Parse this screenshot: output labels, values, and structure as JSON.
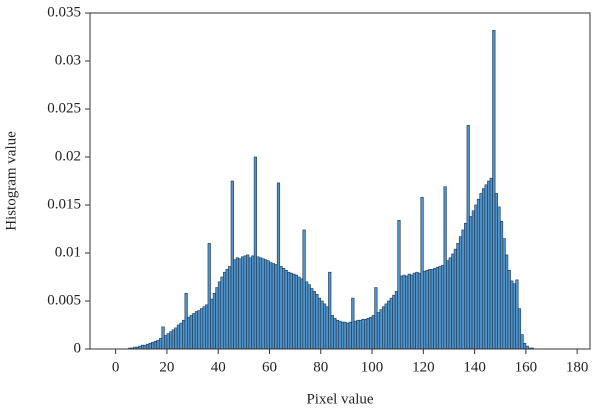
{
  "chart_data": {
    "type": "histogram",
    "xlabel": "Pixel value",
    "ylabel": "Histogram value",
    "color": "#4f93c9",
    "edgecolor": "#1d3650",
    "xlim": [
      -10,
      185
    ],
    "ylim": [
      0,
      0.035
    ],
    "xticks": [
      0,
      20,
      40,
      60,
      80,
      100,
      120,
      140,
      160,
      180
    ],
    "yticks": [
      0,
      0.005,
      0.01,
      0.015,
      0.02,
      0.025,
      0.03,
      0.035
    ],
    "bins": [
      0,
      1,
      2,
      3,
      4,
      5,
      6,
      7,
      8,
      9,
      10,
      11,
      12,
      13,
      14,
      15,
      16,
      17,
      18,
      19,
      20,
      21,
      22,
      23,
      24,
      25,
      26,
      27,
      28,
      29,
      30,
      31,
      32,
      33,
      34,
      35,
      36,
      37,
      38,
      39,
      40,
      41,
      42,
      43,
      44,
      45,
      46,
      47,
      48,
      49,
      50,
      51,
      52,
      53,
      54,
      55,
      56,
      57,
      58,
      59,
      60,
      61,
      62,
      63,
      64,
      65,
      66,
      67,
      68,
      69,
      70,
      71,
      72,
      73,
      74,
      75,
      76,
      77,
      78,
      79,
      80,
      81,
      82,
      83,
      84,
      85,
      86,
      87,
      88,
      89,
      90,
      91,
      92,
      93,
      94,
      95,
      96,
      97,
      98,
      99,
      100,
      101,
      102,
      103,
      104,
      105,
      106,
      107,
      108,
      109,
      110,
      111,
      112,
      113,
      114,
      115,
      116,
      117,
      118,
      119,
      120,
      121,
      122,
      123,
      124,
      125,
      126,
      127,
      128,
      129,
      130,
      131,
      132,
      133,
      134,
      135,
      136,
      137,
      138,
      139,
      140,
      141,
      142,
      143,
      144,
      145,
      146,
      147,
      148,
      149,
      150,
      151,
      152,
      153,
      154,
      155,
      156,
      157,
      158,
      159,
      160,
      161,
      162,
      163,
      164,
      165,
      166,
      167,
      168,
      169,
      170
    ],
    "values": [
      0,
      0,
      0,
      0,
      0,
      0.0001,
      0.0001,
      0.0002,
      0.0002,
      0.0003,
      0.0004,
      0.0004,
      0.0005,
      0.0006,
      0.0007,
      0.0008,
      0.0009,
      0.0011,
      0.0023,
      0.0014,
      0.0016,
      0.0018,
      0.002,
      0.0022,
      0.0025,
      0.0027,
      0.003,
      0.0058,
      0.0033,
      0.0035,
      0.0037,
      0.0039,
      0.004,
      0.0042,
      0.0044,
      0.0046,
      0.011,
      0.0052,
      0.0058,
      0.0064,
      0.007,
      0.0075,
      0.008,
      0.0083,
      0.0086,
      0.0175,
      0.0093,
      0.0095,
      0.0094,
      0.0096,
      0.0097,
      0.0098,
      0.0095,
      0.0097,
      0.02,
      0.0096,
      0.0095,
      0.0094,
      0.0093,
      0.0092,
      0.009,
      0.0089,
      0.0088,
      0.0173,
      0.0086,
      0.0084,
      0.0082,
      0.008,
      0.0079,
      0.0078,
      0.0077,
      0.0075,
      0.0073,
      0.0124,
      0.007,
      0.0067,
      0.0063,
      0.006,
      0.0057,
      0.0053,
      0.005,
      0.0047,
      0.0044,
      0.008,
      0.0035,
      0.0032,
      0.003,
      0.0029,
      0.0028,
      0.0028,
      0.0027,
      0.0028,
      0.0053,
      0.0029,
      0.003,
      0.003,
      0.0031,
      0.0031,
      0.0032,
      0.0033,
      0.0035,
      0.0064,
      0.0038,
      0.0041,
      0.0044,
      0.0047,
      0.005,
      0.0053,
      0.0056,
      0.006,
      0.0134,
      0.0076,
      0.0077,
      0.0076,
      0.0078,
      0.0077,
      0.0079,
      0.008,
      0.0079,
      0.0158,
      0.0081,
      0.0082,
      0.0083,
      0.0083,
      0.0084,
      0.0085,
      0.0086,
      0.0087,
      0.0169,
      0.0092,
      0.0095,
      0.0099,
      0.0104,
      0.011,
      0.0117,
      0.0124,
      0.0131,
      0.0233,
      0.0138,
      0.0144,
      0.015,
      0.0156,
      0.0162,
      0.0167,
      0.0171,
      0.0175,
      0.0178,
      0.0332,
      0.0162,
      0.0148,
      0.0133,
      0.0115,
      0.0098,
      0.0082,
      0.0071,
      0.0068,
      0.0072,
      0.0042,
      0.0015,
      0.0006,
      0.0003,
      0.0001,
      0.0001,
      0,
      0,
      0,
      0,
      0,
      0,
      0
    ]
  }
}
